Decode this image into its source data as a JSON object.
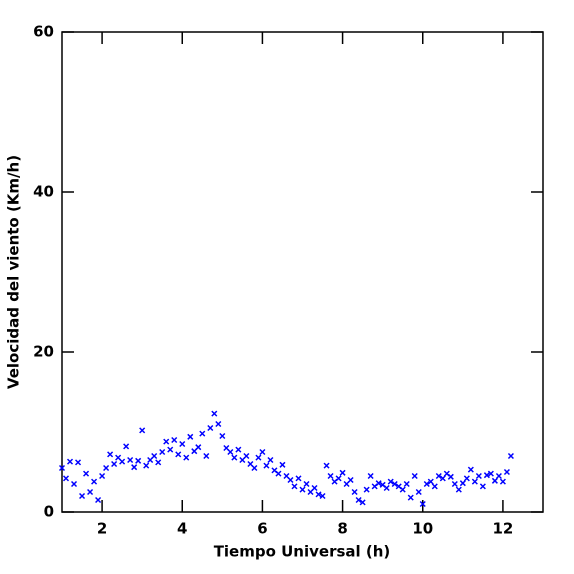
{
  "chart_data": {
    "type": "scatter",
    "x_label": "Tiempo Universal (h)",
    "y_label": "Velocidad del viento (Km/h)",
    "xlim": [
      1,
      13
    ],
    "ylim": [
      0,
      60
    ],
    "xticks": [
      2,
      4,
      6,
      8,
      10,
      12
    ],
    "yticks": [
      0,
      20,
      40,
      60
    ],
    "color": "#0000ff",
    "x": [
      1.0,
      1.1,
      1.2,
      1.3,
      1.4,
      1.5,
      1.6,
      1.7,
      1.8,
      1.9,
      2.0,
      2.1,
      2.2,
      2.3,
      2.4,
      2.5,
      2.6,
      2.7,
      2.8,
      2.9,
      3.0,
      3.1,
      3.2,
      3.3,
      3.4,
      3.5,
      3.6,
      3.7,
      3.8,
      3.9,
      4.0,
      4.1,
      4.2,
      4.3,
      4.4,
      4.5,
      4.6,
      4.7,
      4.8,
      4.9,
      5.0,
      5.1,
      5.2,
      5.3,
      5.4,
      5.5,
      5.6,
      5.7,
      5.8,
      5.9,
      6.0,
      6.1,
      6.2,
      6.3,
      6.4,
      6.5,
      6.6,
      6.7,
      6.8,
      6.9,
      7.0,
      7.1,
      7.2,
      7.3,
      7.4,
      7.5,
      7.6,
      7.7,
      7.8,
      7.9,
      8.0,
      8.1,
      8.2,
      8.3,
      8.4,
      8.5,
      8.6,
      8.7,
      8.8,
      8.9,
      9.0,
      9.1,
      9.2,
      9.3,
      9.4,
      9.5,
      9.6,
      9.7,
      9.8,
      9.9,
      10.0,
      10.1,
      10.2,
      10.3,
      10.4,
      10.5,
      10.6,
      10.7,
      10.8,
      10.9,
      11.0,
      11.1,
      11.2,
      11.3,
      11.4,
      11.5,
      11.6,
      11.7,
      11.8,
      11.9,
      12.0,
      12.1,
      12.2
    ],
    "values": [
      5.5,
      4.2,
      6.3,
      3.5,
      6.2,
      2.0,
      4.8,
      2.5,
      3.8,
      1.5,
      4.5,
      5.5,
      7.2,
      6.0,
      6.8,
      6.3,
      8.2,
      6.5,
      5.6,
      6.4,
      10.2,
      5.8,
      6.5,
      7.0,
      6.2,
      7.5,
      8.8,
      7.8,
      9.0,
      7.2,
      8.5,
      6.8,
      9.4,
      7.6,
      8.1,
      9.8,
      7.0,
      10.5,
      12.3,
      11.0,
      9.5,
      8.0,
      7.5,
      6.8,
      7.8,
      6.5,
      7.0,
      6.0,
      5.5,
      6.8,
      7.5,
      5.8,
      6.5,
      5.2,
      4.8,
      5.9,
      4.5,
      4.0,
      3.2,
      4.2,
      2.8,
      3.5,
      2.5,
      3.0,
      2.2,
      2.0,
      5.8,
      4.5,
      3.8,
      4.2,
      4.9,
      3.5,
      4.0,
      2.5,
      1.5,
      1.2,
      2.8,
      4.5,
      3.2,
      3.6,
      3.4,
      3.0,
      3.8,
      3.5,
      3.2,
      2.8,
      3.5,
      1.8,
      4.5,
      2.5,
      1.0,
      3.5,
      3.8,
      3.2,
      4.5,
      4.2,
      4.8,
      4.4,
      3.5,
      2.8,
      3.6,
      4.2,
      5.3,
      3.8,
      4.5,
      3.2,
      4.6,
      4.8,
      3.9,
      4.5,
      3.8,
      5.0,
      7.0
    ]
  }
}
